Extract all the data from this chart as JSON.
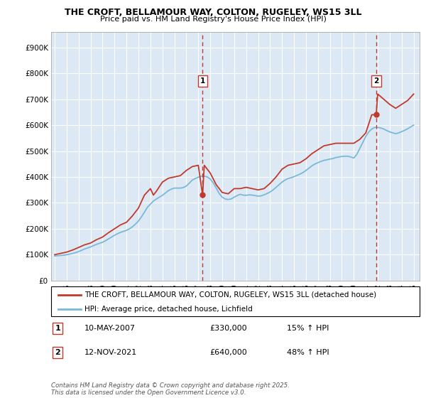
{
  "title_line1": "THE CROFT, BELLAMOUR WAY, COLTON, RUGELEY, WS15 3LL",
  "title_line2": "Price paid vs. HM Land Registry's House Price Index (HPI)",
  "bg_color": "#dce9f5",
  "hpi_color": "#7ab8d9",
  "price_color": "#c0392b",
  "annotation_color": "#c0392b",
  "ylabel_vals": [
    "£0",
    "£100K",
    "£200K",
    "£300K",
    "£400K",
    "£500K",
    "£600K",
    "£700K",
    "£800K",
    "£900K"
  ],
  "ytick_vals": [
    0,
    100000,
    200000,
    300000,
    400000,
    500000,
    600000,
    700000,
    800000,
    900000
  ],
  "ylim": [
    0,
    960000
  ],
  "xlim_start": 1994.7,
  "xlim_end": 2025.5,
  "xtick_years": [
    1995,
    1996,
    1997,
    1998,
    1999,
    2000,
    2001,
    2002,
    2003,
    2004,
    2005,
    2006,
    2007,
    2008,
    2009,
    2010,
    2011,
    2012,
    2013,
    2014,
    2015,
    2016,
    2017,
    2018,
    2019,
    2020,
    2021,
    2022,
    2023,
    2024,
    2025
  ],
  "legend_line1": "THE CROFT, BELLAMOUR WAY, COLTON, RUGELEY, WS15 3LL (detached house)",
  "legend_line2": "HPI: Average price, detached house, Lichfield",
  "marker1_x": 2007.36,
  "marker1_y": 330000,
  "marker1_label": "1",
  "marker1_date": "10-MAY-2007",
  "marker1_price": "£330,000",
  "marker1_hpi": "15% ↑ HPI",
  "marker2_x": 2021.87,
  "marker2_y": 640000,
  "marker2_label": "2",
  "marker2_date": "12-NOV-2021",
  "marker2_price": "£640,000",
  "marker2_hpi": "48% ↑ HPI",
  "footer": "Contains HM Land Registry data © Crown copyright and database right 2025.\nThis data is licensed under the Open Government Licence v3.0.",
  "hpi_data_x": [
    1995.0,
    1995.25,
    1995.5,
    1995.75,
    1996.0,
    1996.25,
    1996.5,
    1996.75,
    1997.0,
    1997.25,
    1997.5,
    1997.75,
    1998.0,
    1998.25,
    1998.5,
    1998.75,
    1999.0,
    1999.25,
    1999.5,
    1999.75,
    2000.0,
    2000.25,
    2000.5,
    2000.75,
    2001.0,
    2001.25,
    2001.5,
    2001.75,
    2002.0,
    2002.25,
    2002.5,
    2002.75,
    2003.0,
    2003.25,
    2003.5,
    2003.75,
    2004.0,
    2004.25,
    2004.5,
    2004.75,
    2005.0,
    2005.25,
    2005.5,
    2005.75,
    2006.0,
    2006.25,
    2006.5,
    2006.75,
    2007.0,
    2007.25,
    2007.5,
    2007.75,
    2008.0,
    2008.25,
    2008.5,
    2008.75,
    2009.0,
    2009.25,
    2009.5,
    2009.75,
    2010.0,
    2010.25,
    2010.5,
    2010.75,
    2011.0,
    2011.25,
    2011.5,
    2011.75,
    2012.0,
    2012.25,
    2012.5,
    2012.75,
    2013.0,
    2013.25,
    2013.5,
    2013.75,
    2014.0,
    2014.25,
    2014.5,
    2014.75,
    2015.0,
    2015.25,
    2015.5,
    2015.75,
    2016.0,
    2016.25,
    2016.5,
    2016.75,
    2017.0,
    2017.25,
    2017.5,
    2017.75,
    2018.0,
    2018.25,
    2018.5,
    2018.75,
    2019.0,
    2019.25,
    2019.5,
    2019.75,
    2020.0,
    2020.25,
    2020.5,
    2020.75,
    2021.0,
    2021.25,
    2021.5,
    2021.75,
    2022.0,
    2022.25,
    2022.5,
    2022.75,
    2023.0,
    2023.25,
    2023.5,
    2023.75,
    2024.0,
    2024.25,
    2024.5,
    2024.75,
    2025.0
  ],
  "hpi_data_y": [
    95000,
    96000,
    97000,
    98000,
    100000,
    102000,
    105000,
    108000,
    112000,
    117000,
    122000,
    126000,
    130000,
    135000,
    140000,
    144000,
    148000,
    154000,
    161000,
    168000,
    175000,
    181000,
    186000,
    190000,
    194000,
    200000,
    208000,
    218000,
    230000,
    246000,
    264000,
    283000,
    295000,
    307000,
    315000,
    322000,
    329000,
    338000,
    347000,
    353000,
    357000,
    357000,
    357000,
    359000,
    365000,
    376000,
    388000,
    394000,
    399000,
    403000,
    403000,
    400000,
    392000,
    377000,
    357000,
    336000,
    322000,
    315000,
    313000,
    315000,
    322000,
    328000,
    333000,
    330000,
    329000,
    331000,
    330000,
    328000,
    326000,
    327000,
    331000,
    336000,
    342000,
    350000,
    360000,
    370000,
    380000,
    388000,
    394000,
    397000,
    401000,
    406000,
    411000,
    417000,
    425000,
    434000,
    443000,
    450000,
    455000,
    460000,
    464000,
    466000,
    469000,
    471000,
    475000,
    477000,
    479000,
    480000,
    480000,
    477000,
    473000,
    487000,
    510000,
    533000,
    556000,
    574000,
    585000,
    591000,
    591000,
    589000,
    585000,
    579000,
    574000,
    570000,
    567000,
    570000,
    575000,
    580000,
    586000,
    593000,
    600000
  ],
  "price_data_x": [
    1995.0,
    1995.5,
    1996.0,
    1996.5,
    1997.0,
    1997.5,
    1998.0,
    1998.5,
    1999.0,
    1999.5,
    2000.0,
    2000.5,
    2001.0,
    2001.5,
    2002.0,
    2002.5,
    2003.0,
    2003.25,
    2003.5,
    2004.0,
    2004.5,
    2005.0,
    2005.5,
    2006.0,
    2006.5,
    2007.0,
    2007.36,
    2007.5,
    2007.75,
    2008.0,
    2008.5,
    2009.0,
    2009.5,
    2010.0,
    2010.5,
    2011.0,
    2011.5,
    2012.0,
    2012.5,
    2013.0,
    2013.5,
    2014.0,
    2014.5,
    2015.0,
    2015.5,
    2016.0,
    2016.5,
    2017.0,
    2017.5,
    2018.0,
    2018.5,
    2019.0,
    2019.5,
    2020.0,
    2020.5,
    2021.0,
    2021.5,
    2021.87,
    2022.0,
    2022.5,
    2023.0,
    2023.5,
    2024.0,
    2024.5,
    2025.0
  ],
  "price_data_y": [
    100000,
    105000,
    110000,
    118000,
    128000,
    138000,
    145000,
    158000,
    168000,
    185000,
    200000,
    215000,
    225000,
    250000,
    280000,
    330000,
    355000,
    330000,
    345000,
    380000,
    395000,
    400000,
    405000,
    425000,
    440000,
    445000,
    330000,
    445000,
    430000,
    415000,
    370000,
    340000,
    335000,
    355000,
    355000,
    360000,
    355000,
    350000,
    355000,
    375000,
    400000,
    430000,
    445000,
    450000,
    455000,
    470000,
    490000,
    505000,
    520000,
    525000,
    530000,
    530000,
    530000,
    530000,
    545000,
    570000,
    640000,
    640000,
    720000,
    700000,
    680000,
    665000,
    680000,
    695000,
    720000
  ]
}
